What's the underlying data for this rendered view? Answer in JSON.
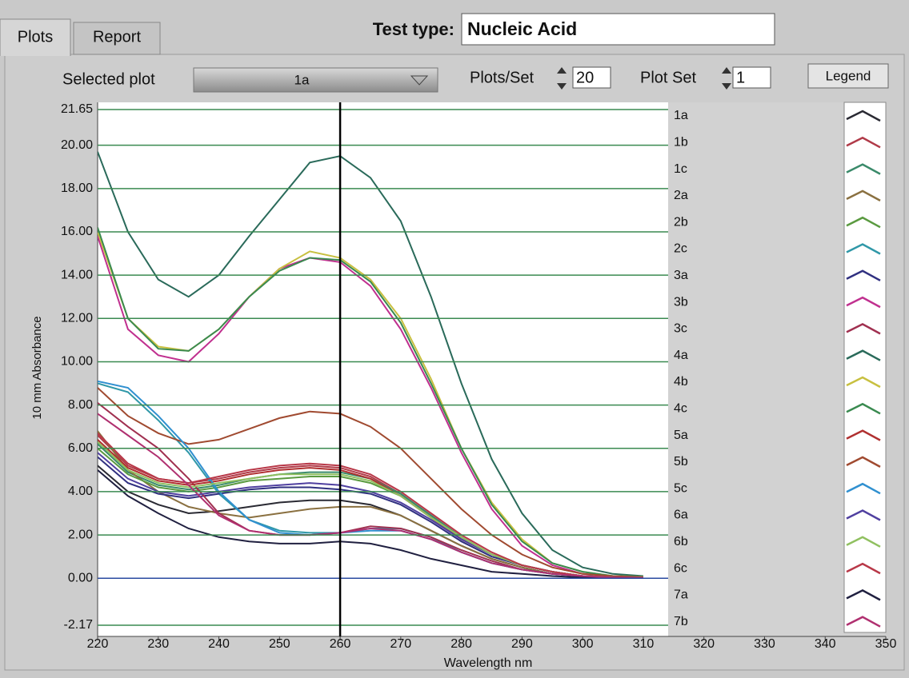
{
  "ui": {
    "tabs": [
      "Plots",
      "Report"
    ],
    "test_type_label": "Test type:",
    "test_type": "Nucleic Acid",
    "selected_plot_label": "Selected plot",
    "selected_plot": "1a",
    "plots_per_set_label": "Plots/Set",
    "plots_per_set": 20,
    "plot_set_label": "Plot Set",
    "plot_set": 1,
    "legend_button": "Legend"
  },
  "chart_data": {
    "type": "line",
    "y_label": "10 mm Absorbance",
    "x_label": "Wavelength nm",
    "xlim": [
      220,
      350
    ],
    "xticks": [
      220,
      230,
      240,
      250,
      260,
      270,
      280,
      290,
      300,
      310,
      320,
      330,
      340,
      350
    ],
    "ylim": [
      -2.17,
      21.65
    ],
    "yticks": [
      {
        "value": 21.65,
        "label": "21.65"
      },
      {
        "value": 20,
        "label": "20.00"
      },
      {
        "value": 18,
        "label": "18.00"
      },
      {
        "value": 16,
        "label": "16.00"
      },
      {
        "value": 14,
        "label": "14.00"
      },
      {
        "value": 12,
        "label": "12.00"
      },
      {
        "value": 10,
        "label": "10.00"
      },
      {
        "value": 8,
        "label": "8.00"
      },
      {
        "value": 6,
        "label": "6.00"
      },
      {
        "value": 4,
        "label": "4.00"
      },
      {
        "value": 2,
        "label": "2.00"
      },
      {
        "value": 0,
        "label": "0.00"
      },
      {
        "value": -2.17,
        "label": "-2.17"
      }
    ],
    "grid": true,
    "legend": "right",
    "cursor_x": 260,
    "x": [
      220,
      225,
      230,
      235,
      240,
      245,
      250,
      255,
      260,
      265,
      270,
      275,
      280,
      285,
      290,
      295,
      300,
      305,
      310
    ],
    "series": [
      {
        "name": "1a",
        "color": "#2a2a33",
        "values": [
          5.2,
          4.0,
          3.4,
          3.0,
          3.1,
          3.3,
          3.5,
          3.6,
          3.6,
          3.4,
          2.9,
          2.2,
          1.5,
          0.9,
          0.5,
          0.2,
          0.1,
          0.05,
          0.03
        ]
      },
      {
        "name": "1b",
        "color": "#b03a48",
        "values": [
          6.6,
          5.2,
          4.6,
          4.4,
          4.6,
          4.9,
          5.1,
          5.2,
          5.1,
          4.7,
          3.9,
          2.9,
          1.9,
          1.1,
          0.6,
          0.3,
          0.1,
          0.05,
          0.03
        ]
      },
      {
        "name": "1c",
        "color": "#3a8a6a",
        "values": [
          6.2,
          4.9,
          4.3,
          4.1,
          4.3,
          4.6,
          4.8,
          4.9,
          4.9,
          4.6,
          3.9,
          2.9,
          1.9,
          1.1,
          0.6,
          0.3,
          0.1,
          0.05,
          0.03
        ]
      },
      {
        "name": "2a",
        "color": "#8a7040",
        "values": [
          6.8,
          5.0,
          4.0,
          3.3,
          3.0,
          2.8,
          3.0,
          3.2,
          3.3,
          3.3,
          2.9,
          2.2,
          1.5,
          0.9,
          0.5,
          0.2,
          0.1,
          0.05,
          0.02
        ]
      },
      {
        "name": "2b",
        "color": "#5a9a40",
        "values": [
          6.0,
          4.8,
          4.2,
          4.0,
          4.2,
          4.5,
          4.6,
          4.7,
          4.7,
          4.4,
          3.8,
          2.8,
          1.8,
          1.1,
          0.6,
          0.3,
          0.1,
          0.05,
          0.03
        ]
      },
      {
        "name": "2c",
        "color": "#3098a8",
        "values": [
          9.0,
          8.6,
          7.3,
          5.8,
          3.9,
          2.7,
          2.2,
          2.1,
          2.1,
          2.3,
          2.3,
          1.9,
          1.2,
          0.7,
          0.4,
          0.2,
          0.1,
          0.05,
          0.02
        ]
      },
      {
        "name": "3a",
        "color": "#303080",
        "values": [
          5.6,
          4.4,
          3.9,
          3.7,
          3.9,
          4.1,
          4.2,
          4.2,
          4.1,
          3.9,
          3.4,
          2.6,
          1.7,
          1.0,
          0.6,
          0.3,
          0.1,
          0.05,
          0.02
        ]
      },
      {
        "name": "3b",
        "color": "#c0308f",
        "values": [
          15.8,
          11.5,
          10.3,
          10.0,
          11.3,
          13.0,
          14.3,
          14.8,
          14.6,
          13.5,
          11.5,
          8.8,
          5.8,
          3.2,
          1.5,
          0.6,
          0.2,
          0.1,
          0.05
        ]
      },
      {
        "name": "3c",
        "color": "#a03050",
        "values": [
          8.1,
          7.0,
          6.0,
          4.6,
          3.0,
          2.2,
          2.0,
          2.0,
          2.1,
          2.4,
          2.3,
          1.9,
          1.3,
          0.8,
          0.4,
          0.2,
          0.1,
          0.03,
          0.02
        ]
      },
      {
        "name": "4a",
        "color": "#2a6a5a",
        "values": [
          19.7,
          16.0,
          13.8,
          13.0,
          14.0,
          15.8,
          17.5,
          19.2,
          19.5,
          18.5,
          16.5,
          13.0,
          9.0,
          5.5,
          3.0,
          1.3,
          0.5,
          0.2,
          0.1
        ]
      },
      {
        "name": "4b",
        "color": "#c8c040",
        "values": [
          16.0,
          12.0,
          10.7,
          10.5,
          11.5,
          13.0,
          14.3,
          15.1,
          14.8,
          13.8,
          12.0,
          9.2,
          6.0,
          3.5,
          1.8,
          0.7,
          0.3,
          0.1,
          0.08
        ]
      },
      {
        "name": "4c",
        "color": "#3a8a50",
        "values": [
          16.2,
          12.0,
          10.6,
          10.5,
          11.5,
          13.0,
          14.2,
          14.8,
          14.7,
          13.7,
          11.8,
          9.0,
          6.0,
          3.4,
          1.7,
          0.7,
          0.3,
          0.1,
          0.07
        ]
      },
      {
        "name": "5a",
        "color": "#b03030",
        "values": [
          6.4,
          5.1,
          4.5,
          4.3,
          4.5,
          4.8,
          5.0,
          5.1,
          5.0,
          4.6,
          3.8,
          2.8,
          1.8,
          1.1,
          0.6,
          0.3,
          0.1,
          0.05,
          0.03
        ]
      },
      {
        "name": "5b",
        "color": "#a04a30",
        "values": [
          8.8,
          7.5,
          6.7,
          6.2,
          6.4,
          6.9,
          7.4,
          7.7,
          7.6,
          7.0,
          6.0,
          4.6,
          3.2,
          2.0,
          1.1,
          0.5,
          0.2,
          0.1,
          0.05
        ]
      },
      {
        "name": "5c",
        "color": "#3090d0",
        "values": [
          9.1,
          8.8,
          7.5,
          6.0,
          4.0,
          2.7,
          2.1,
          2.0,
          2.1,
          2.2,
          2.2,
          1.8,
          1.2,
          0.7,
          0.4,
          0.2,
          0.1,
          0.05,
          0.02
        ]
      },
      {
        "name": "6a",
        "color": "#5040a0",
        "values": [
          5.8,
          4.6,
          4.0,
          3.8,
          4.0,
          4.2,
          4.3,
          4.4,
          4.3,
          4.0,
          3.5,
          2.7,
          1.8,
          1.1,
          0.6,
          0.3,
          0.1,
          0.05,
          0.02
        ]
      },
      {
        "name": "6b",
        "color": "#90c060",
        "values": [
          6.3,
          5.0,
          4.4,
          4.2,
          4.4,
          4.6,
          4.8,
          4.8,
          4.8,
          4.5,
          3.8,
          2.8,
          1.9,
          1.1,
          0.6,
          0.3,
          0.1,
          0.05,
          0.03
        ]
      },
      {
        "name": "6c",
        "color": "#b83848",
        "values": [
          6.7,
          5.3,
          4.6,
          4.4,
          4.7,
          5.0,
          5.2,
          5.3,
          5.2,
          4.8,
          4.0,
          3.0,
          2.0,
          1.2,
          0.6,
          0.3,
          0.1,
          0.05,
          0.03
        ]
      },
      {
        "name": "7a",
        "color": "#202040",
        "values": [
          5.0,
          3.8,
          3.0,
          2.3,
          1.9,
          1.7,
          1.6,
          1.6,
          1.7,
          1.6,
          1.3,
          0.9,
          0.6,
          0.3,
          0.2,
          0.1,
          0.04,
          0.02,
          0.01
        ]
      },
      {
        "name": "7b",
        "color": "#b03070",
        "values": [
          7.6,
          6.6,
          5.6,
          4.3,
          2.9,
          2.2,
          2.0,
          2.0,
          2.1,
          2.3,
          2.2,
          1.8,
          1.2,
          0.7,
          0.4,
          0.2,
          0.1,
          0.03,
          0.02
        ]
      }
    ]
  }
}
